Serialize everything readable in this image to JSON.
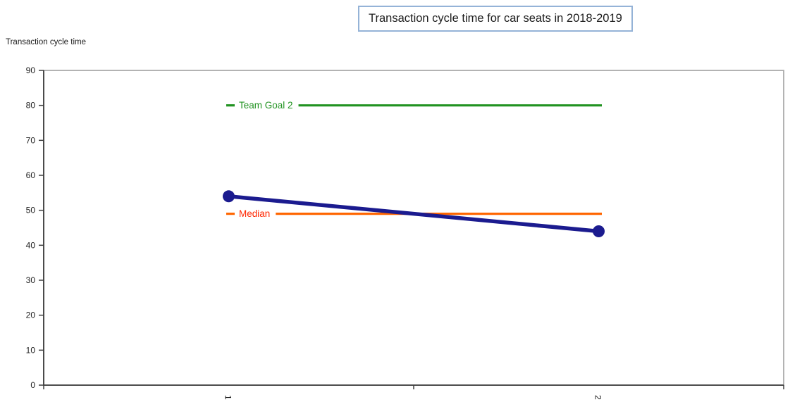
{
  "header": {
    "title": "Transaction cycle time for car seats in 2018-2019",
    "title_border_color": "#95b3d7"
  },
  "chart_data": {
    "type": "line",
    "title": "Transaction cycle time for car seats in 2018-2019",
    "ylabel": "Transaction cycle time",
    "xlabel": "",
    "categories": [
      "1",
      "2"
    ],
    "x_tick_rotation_deg": 90,
    "ylim": [
      0,
      90
    ],
    "ytick_step": 10,
    "yticks": [
      0,
      10,
      20,
      30,
      40,
      50,
      60,
      70,
      80,
      90
    ],
    "grid": false,
    "legend_position": "inline-labels",
    "series": [
      {
        "name": "Transaction cycle time",
        "type": "line-with-markers",
        "values": [
          54,
          44
        ],
        "color": "#1b1b8f",
        "marker": "circle"
      }
    ],
    "reference_lines": [
      {
        "name": "Team Goal 2",
        "label": "Team Goal 2",
        "value": 80,
        "color": "#229322",
        "label_color": "#229322"
      },
      {
        "name": "Median",
        "label": "Median",
        "value": 49,
        "color": "#ff6600",
        "label_color": "#ff2600"
      }
    ]
  }
}
